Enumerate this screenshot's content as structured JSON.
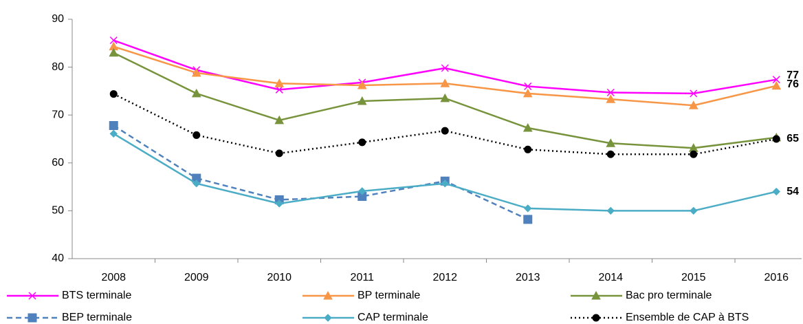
{
  "chart_data": {
    "type": "line",
    "categories": [
      "2008",
      "2009",
      "2010",
      "2011",
      "2012",
      "2013",
      "2014",
      "2015",
      "2016"
    ],
    "ylim": [
      40,
      90
    ],
    "yticks": [
      40,
      50,
      60,
      70,
      80,
      90
    ],
    "grid": false,
    "series": [
      {
        "name": "BTS terminale",
        "color": "#ff00ff",
        "marker": "x",
        "dash": "solid",
        "values": [
          85.6,
          79.4,
          75.3,
          76.8,
          79.8,
          76,
          74.7,
          74.5,
          77.4
        ],
        "value_labels": [
          null,
          null,
          null,
          null,
          null,
          null,
          null,
          null,
          "77"
        ]
      },
      {
        "name": "BP terminale",
        "color": "#f79646",
        "marker": "triangle",
        "dash": "solid",
        "values": [
          84.3,
          78.8,
          76.6,
          76.2,
          76.6,
          74.5,
          73.3,
          72,
          76.1
        ],
        "value_labels": [
          null,
          null,
          null,
          null,
          null,
          null,
          null,
          null,
          "76"
        ]
      },
      {
        "name": "Bac pro terminale",
        "color": "#77933c",
        "marker": "triangle",
        "dash": "solid",
        "values": [
          83,
          74.5,
          68.9,
          72.9,
          73.5,
          67.3,
          64.1,
          63.1,
          65.3
        ]
      },
      {
        "name": "BEP terminale",
        "color": "#4f81bd",
        "marker": "square",
        "dash": "dashed",
        "values": [
          67.8,
          56.8,
          52.3,
          53,
          56.2,
          48.2,
          null,
          null,
          null
        ]
      },
      {
        "name": "CAP terminale",
        "color": "#4bacc6",
        "marker": "diamond",
        "dash": "solid",
        "values": [
          66.1,
          55.7,
          51.5,
          54.1,
          55.7,
          50.5,
          50,
          50,
          54
        ],
        "value_labels": [
          null,
          null,
          null,
          null,
          null,
          null,
          null,
          null,
          "54"
        ]
      },
      {
        "name": "Ensemble de CAP à BTS",
        "color": "#000000",
        "marker": "circle",
        "dash": "dotted",
        "values": [
          74.4,
          65.8,
          62,
          64.3,
          66.7,
          62.8,
          61.8,
          61.8,
          65
        ],
        "value_labels": [
          null,
          null,
          null,
          null,
          null,
          null,
          null,
          null,
          "65"
        ]
      }
    ]
  }
}
